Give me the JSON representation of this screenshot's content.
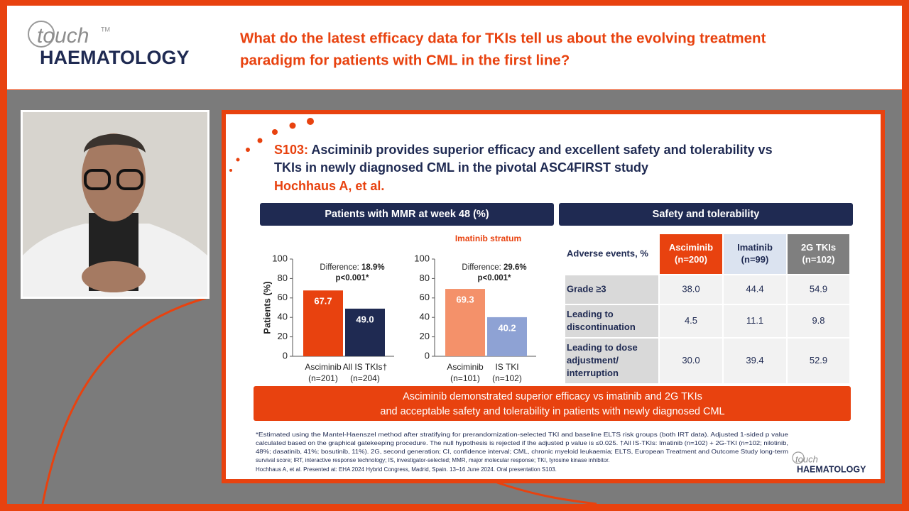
{
  "header": {
    "logo": {
      "word": "touch",
      "mark": "TM",
      "brand": "HAEMATOLOGY"
    },
    "title_lines": [
      "What do the latest efficacy data for TKIs tell us about the evolving treatment",
      "paradigm for patients with CML in the first line?"
    ]
  },
  "slide": {
    "title_prefix": "S103:",
    "title_lines": [
      " Asciminib provides superior efficacy and excellent safety and tolerability vs",
      "TKIs in newly diagnosed CML in the pivotal ASC4FIRST study"
    ],
    "authors": "Hochhaus A, et al.",
    "left_panel": "Patients with MMR at week 48 (%)",
    "right_panel": "Safety and tolerability",
    "banner_lines": [
      "Asciminib demonstrated superior efficacy vs imatinib and 2G TKIs",
      "and acceptable safety and tolerability in patients with newly diagnosed CML"
    ],
    "footnote_lines": [
      "*Estimated using the Mantel-Haenszel method after stratifying for prerandomization-selected TKI and baseline ELTS risk groups (both IRT data). Adjusted 1-sided p value",
      "calculated based on the graphical gatekeeping procedure. The null hypothesis is rejected if the adjusted p value is ≤0.025. †All IS-TKIs: Imatinib (n=102) + 2G-TKI (n=102; nilotinib,",
      "48%; dasatinib, 41%; bosutinib, 11%). 2G, second generation; CI, confidence interval; CML, chronic myeloid leukaemia; ELTS, European Treatment and Outcome Study long-term",
      "survival score; IRT, interactive response technology; IS, investigator-selected; MMR, major molecular response; TKI, tyrosine kinase inhibitor.",
      "Hochhaus A, et al. Presented at: EHA 2024 Hybrid Congress, Madrid, Spain. 13–16 June 2024. Oral presentation S103."
    ],
    "small_logo": {
      "word": "touch",
      "brand": "HAEMATOLOGY"
    }
  },
  "chart_data": [
    {
      "type": "bar",
      "y_label": "Patients (%)",
      "categories": [
        "Asciminib",
        "All IS TKIs†"
      ],
      "category_notes": [
        "(n=201)",
        "(n=204)"
      ],
      "values": [
        67.7,
        49.0
      ],
      "value_labels": [
        "67.7",
        "49.0"
      ],
      "colors": [
        "#e8420f",
        "#1f2a52"
      ],
      "annotation": {
        "label": "Difference: ",
        "value": "18.9%",
        "p": "p<0.001*"
      },
      "ylim": [
        0,
        100
      ],
      "yticks": [
        0,
        20,
        40,
        60,
        80,
        100
      ]
    },
    {
      "type": "bar",
      "subtitle": "Imatinib stratum",
      "categories": [
        "Asciminib",
        "IS TKI"
      ],
      "category_notes": [
        "(n=101)",
        "(n=102)"
      ],
      "values": [
        69.3,
        40.2
      ],
      "value_labels": [
        "69.3",
        "40.2"
      ],
      "colors": [
        "#f4916a",
        "#8ea2d4"
      ],
      "annotation": {
        "label": "Difference: ",
        "value": "29.6%",
        "p": "p<0.001*"
      },
      "ylim": [
        0,
        100
      ],
      "yticks": [
        0,
        20,
        40,
        60,
        80,
        100
      ]
    }
  ],
  "table": {
    "header": [
      [
        "Adverse events, %"
      ],
      [
        "Asciminib",
        "(n=200)"
      ],
      [
        "Imatinib",
        "(n=99)"
      ],
      [
        "2G TKIs",
        "(n=102)"
      ]
    ],
    "rows": [
      [
        [
          "Grade ≥3"
        ],
        "38.0",
        "44.4",
        "54.9"
      ],
      [
        [
          "Leading to",
          "discontinuation"
        ],
        "4.5",
        "11.1",
        "9.8"
      ],
      [
        [
          "Leading to dose",
          "adjustment/",
          "interruption"
        ],
        "30.0",
        "39.4",
        "52.9"
      ]
    ]
  }
}
